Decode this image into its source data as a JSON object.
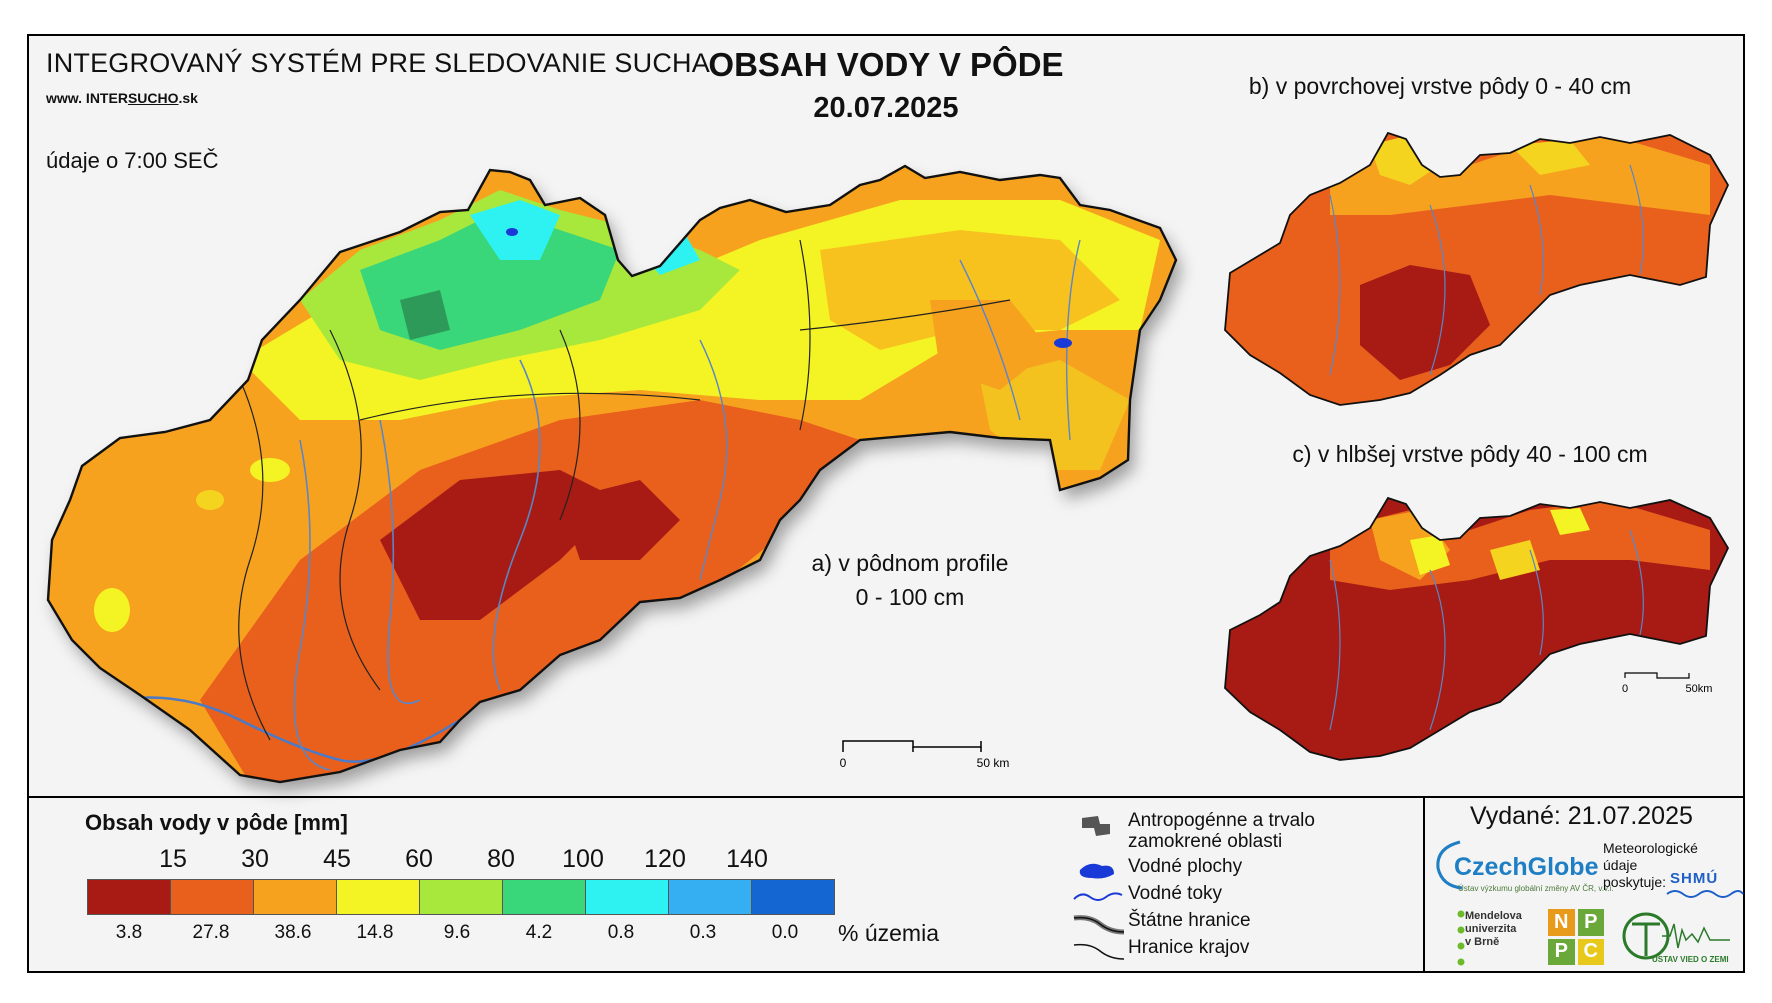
{
  "header": {
    "system_title": "INTEGROVANÝ SYSTÉM PRE SLEDOVANIE SUCHA",
    "website_prefix": "www. INTER",
    "website_brand": "SUCHO",
    "website_suffix": ".sk",
    "data_time": "údaje o 7:00 SEČ",
    "main_title": "OBSAH VODY V PÔDE",
    "main_date": "20.07.2025"
  },
  "maps": {
    "a_label_line1": "a) v pôdnom profile",
    "a_label_line2": "0 - 100 cm",
    "b_label": "b) v povrchovej vrstve pôdy 0 - 40 cm",
    "c_label": "c) v hlbšej vrstve pôdy 40 - 100 cm",
    "scale_main_start": "0",
    "scale_main_end": "50 km",
    "scale_small_start": "0",
    "scale_small_end": "50km"
  },
  "legend": {
    "title": "Obsah vody v pôde  [mm]",
    "thresholds": [
      "15",
      "30",
      "45",
      "60",
      "80",
      "100",
      "120",
      "140"
    ],
    "colors": [
      "#a81a14",
      "#e8601c",
      "#f7a21e",
      "#f4f424",
      "#a8e83c",
      "#3ad67a",
      "#2ef2f2",
      "#36aef2",
      "#1466d2"
    ],
    "percentages": [
      "3.8",
      "27.8",
      "38.6",
      "14.8",
      "9.6",
      "4.2",
      "0.8",
      "0.3",
      "0.0"
    ],
    "percent_label": "% územia"
  },
  "map_key": [
    {
      "icon": "anthropogenic-area-icon",
      "text_line1": "Antropogénne a trvalo",
      "text_line2": "zamokrené oblasti"
    },
    {
      "icon": "water-body-icon",
      "text_line1": "Vodné plochy",
      "text_line2": ""
    },
    {
      "icon": "watercourse-icon",
      "text_line1": "Vodné toky",
      "text_line2": ""
    },
    {
      "icon": "state-border-icon",
      "text_line1": "Štátne hranice",
      "text_line2": ""
    },
    {
      "icon": "region-border-icon",
      "text_line1": "Hranice krajov",
      "text_line2": ""
    }
  ],
  "footer": {
    "issued": "Vydané: 21.07.2025",
    "czechglobe": "CzechGlobe",
    "czechglobe_sub": "Ústav výzkumu globální změny AV ČR, v.v.i.",
    "meteo_line1": "Meteorologické",
    "meteo_line2": "údaje",
    "meteo_line3": "poskytuje:",
    "shmu": "SHMÚ",
    "mendel_line1": "Mendelova",
    "mendel_line2": "univerzita",
    "mendel_line3": "v Brně",
    "npc_letters": [
      "N",
      "P",
      "P",
      "C"
    ],
    "earth_institute": "ÚSTAV VIED O ZEMI"
  }
}
